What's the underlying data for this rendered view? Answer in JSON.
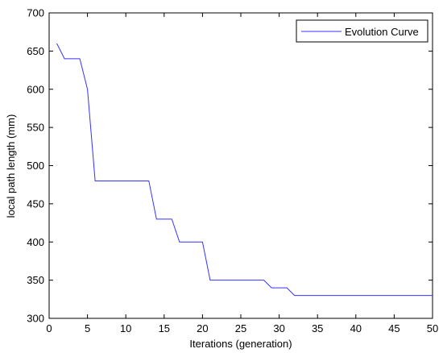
{
  "chart_data": {
    "type": "line",
    "title": "",
    "xlabel": "Iterations (generation)",
    "ylabel": "local path length (mm)",
    "xlim": [
      0,
      50
    ],
    "ylim": [
      300,
      700
    ],
    "xticks": [
      0,
      5,
      10,
      15,
      20,
      25,
      30,
      35,
      40,
      45,
      50
    ],
    "yticks": [
      300,
      350,
      400,
      450,
      500,
      550,
      600,
      650,
      700
    ],
    "grid": false,
    "legend_position": "top-right",
    "series": [
      {
        "name": "Evolution Curve",
        "color": "#3333ff",
        "x": [
          1,
          2,
          3,
          4,
          5,
          6,
          7,
          8,
          9,
          10,
          11,
          12,
          13,
          14,
          15,
          16,
          17,
          18,
          19,
          20,
          21,
          22,
          23,
          24,
          25,
          26,
          27,
          28,
          29,
          30,
          31,
          32,
          33,
          34,
          35,
          36,
          37,
          38,
          39,
          40,
          41,
          42,
          43,
          44,
          45,
          46,
          47,
          48,
          49,
          50
        ],
        "y": [
          660,
          640,
          640,
          640,
          600,
          480,
          480,
          480,
          480,
          480,
          480,
          480,
          480,
          430,
          430,
          430,
          400,
          400,
          400,
          400,
          350,
          350,
          350,
          350,
          350,
          350,
          350,
          350,
          340,
          340,
          340,
          330,
          330,
          330,
          330,
          330,
          330,
          330,
          330,
          330,
          330,
          330,
          330,
          330,
          330,
          330,
          330,
          330,
          330,
          330
        ]
      }
    ]
  }
}
